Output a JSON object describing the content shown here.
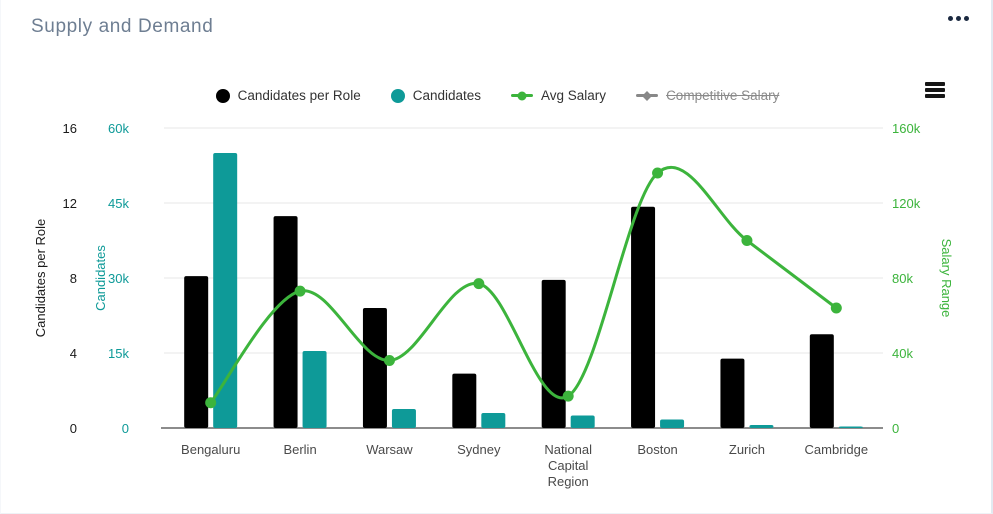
{
  "card": {
    "title": "Supply and Demand",
    "icons": {
      "more_options": "ellipsis-horizontal-icon",
      "chart_menu": "hamburger-menu-icon"
    }
  },
  "chart_data": {
    "type": "combo",
    "title": "Supply and Demand",
    "grid": true,
    "legend_position": "top-center",
    "categories": [
      "Bengaluru",
      "Berlin",
      "Warsaw",
      "Sydney",
      "National Capital Region",
      "Boston",
      "Zurich",
      "Cambridge"
    ],
    "series": [
      {
        "name": "Candidates per Role",
        "type": "bar",
        "axis": "left_primary",
        "color": "#000000",
        "values": [
          8.1,
          11.3,
          6.4,
          2.9,
          7.9,
          11.8,
          3.7,
          5.0
        ]
      },
      {
        "name": "Candidates",
        "type": "bar",
        "axis": "left_secondary",
        "color": "#0E9A98",
        "values": [
          55000,
          15400,
          3800,
          3000,
          2500,
          1700,
          600,
          300
        ]
      },
      {
        "name": "Avg Salary",
        "type": "line",
        "axis": "right",
        "color": "#3CB43C",
        "values": [
          13500,
          73000,
          36000,
          77000,
          17000,
          136000,
          100000,
          64000
        ]
      },
      {
        "name": "Competitive Salary",
        "type": "line",
        "axis": "right",
        "color": "#888888",
        "hidden": true,
        "values": []
      }
    ],
    "axes": {
      "left_primary": {
        "title": "Candidates per Role",
        "range": [
          0,
          16
        ],
        "ticks": [
          "0",
          "4",
          "8",
          "12",
          "16"
        ],
        "color": "#1A1A1A"
      },
      "left_secondary": {
        "title": "Candidates",
        "range": [
          0,
          60000
        ],
        "ticks": [
          "0",
          "15k",
          "30k",
          "45k",
          "60k"
        ],
        "color": "#0E9A98"
      },
      "right": {
        "title": "Salary Range",
        "range": [
          0,
          160000
        ],
        "ticks": [
          "0",
          "40k",
          "80k",
          "120k",
          "160k"
        ],
        "color": "#3CB43C"
      }
    },
    "legend": [
      {
        "label": "Candidates per Role",
        "marker": "circle",
        "color": "#000000",
        "active": true
      },
      {
        "label": "Candidates",
        "marker": "circle",
        "color": "#0E9A98",
        "active": true
      },
      {
        "label": "Avg Salary",
        "marker": "line-dot",
        "color": "#3CB43C",
        "active": true
      },
      {
        "label": "Competitive Salary",
        "marker": "line-diamond",
        "color": "#888888",
        "active": false
      }
    ]
  }
}
